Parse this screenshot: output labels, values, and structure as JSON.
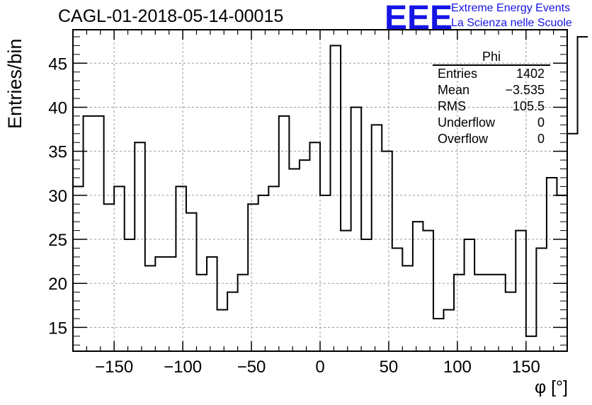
{
  "title": "CAGL-01-2018-05-14-00015",
  "logo": {
    "mark": "EEE",
    "line1": "Extreme Energy Events",
    "line2": "La Scienza nelle Scuole"
  },
  "stats": {
    "name": "Phi",
    "rows": [
      {
        "label": "Entries",
        "value": "1402"
      },
      {
        "label": "Mean",
        "value": "−3.535"
      },
      {
        "label": "RMS",
        "value": "105.5"
      },
      {
        "label": "Underflow",
        "value": "0"
      },
      {
        "label": "Overflow",
        "value": "0"
      }
    ]
  },
  "chart_data": {
    "type": "bar",
    "histogram": true,
    "title": "CAGL-01-2018-05-14-00015",
    "xlabel": "φ [°]",
    "ylabel": "Entries/bin",
    "xlim": [
      -180,
      180
    ],
    "ylim": [
      12.3,
      48.8
    ],
    "bin_width": 7.5,
    "grid": true,
    "xticks": [
      -150,
      -100,
      -50,
      0,
      50,
      100,
      150
    ],
    "xtick_labels": [
      "−150",
      "−100",
      "−50",
      "0",
      "50",
      "100",
      "150"
    ],
    "yticks": [
      15,
      20,
      25,
      30,
      35,
      40,
      45
    ],
    "yticks_labels": [
      "15",
      "20",
      "25",
      "30",
      "35",
      "40",
      "45"
    ],
    "values": [
      31,
      39,
      39,
      29,
      31,
      25,
      36,
      22,
      23,
      23,
      31,
      28,
      21,
      23,
      17,
      19,
      21,
      29,
      30,
      31,
      39,
      33,
      34,
      36,
      30,
      47,
      26,
      40,
      25,
      38,
      35,
      24,
      22,
      27,
      26,
      16,
      17,
      21,
      25,
      21,
      21,
      21,
      19,
      26,
      14,
      24,
      32,
      30,
      37,
      48
    ]
  }
}
